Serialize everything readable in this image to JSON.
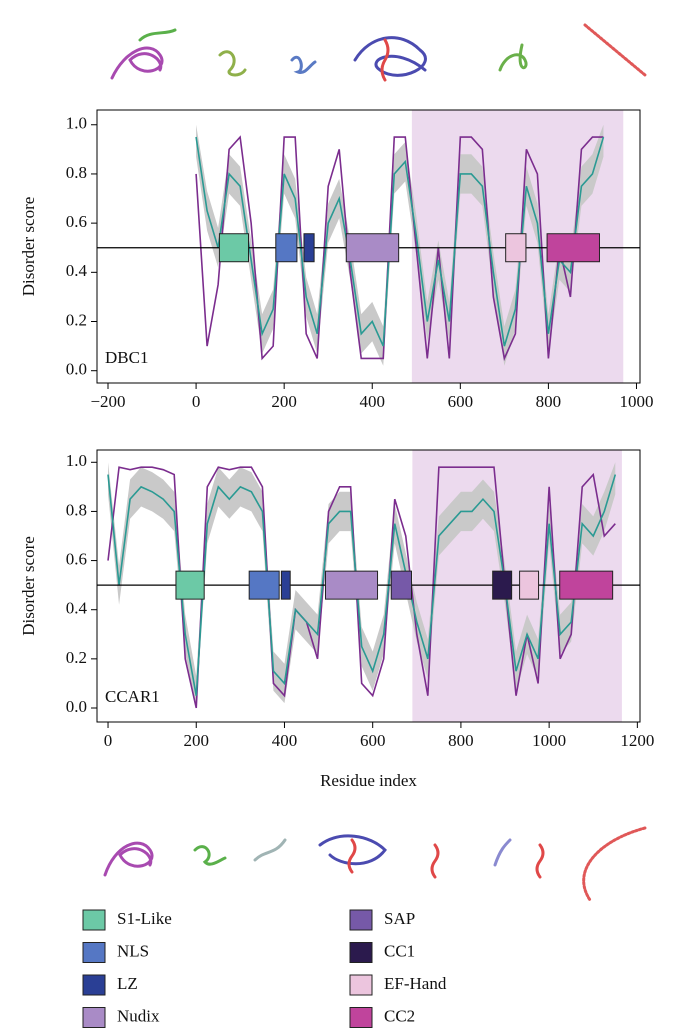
{
  "chart_data": [
    {
      "type": "line",
      "label": "DBC1",
      "y_label": "Disorder score",
      "xlim": [
        -225,
        1008
      ],
      "ylim": [
        -0.05,
        1.06
      ],
      "xticks": [
        {
          "value": -200,
          "label": "−200"
        },
        0,
        200,
        400,
        600,
        800,
        1000
      ],
      "yticks": [
        {
          "value": 0,
          "label": "0.0"
        },
        {
          "value": 0.2,
          "label": "0.2"
        },
        {
          "value": 0.4,
          "label": "0.4"
        },
        {
          "value": 0.6,
          "label": "0.6"
        },
        {
          "value": 0.8,
          "label": "0.8"
        },
        {
          "value": 1,
          "label": "1.0"
        }
      ],
      "threshold": 0.5,
      "region": [
        490,
        970
      ],
      "region_color": "#ecdaee",
      "x": [
        0,
        25,
        50,
        75,
        100,
        125,
        150,
        175,
        200,
        225,
        250,
        275,
        300,
        325,
        350,
        375,
        400,
        425,
        450,
        475,
        500,
        525,
        550,
        575,
        600,
        625,
        650,
        675,
        700,
        725,
        750,
        775,
        800,
        825,
        850,
        875,
        900,
        925
      ],
      "band": {
        "color": "#c9c9c9",
        "upper": [
          1.0,
          0.73,
          0.58,
          0.88,
          0.83,
          0.53,
          0.23,
          0.33,
          0.88,
          0.78,
          0.38,
          0.23,
          0.68,
          0.78,
          0.53,
          0.23,
          0.28,
          0.18,
          0.88,
          0.93,
          0.63,
          0.28,
          0.53,
          0.28,
          0.88,
          0.88,
          0.83,
          0.48,
          0.18,
          0.33,
          0.83,
          0.68,
          0.23,
          0.53,
          0.48,
          0.83,
          0.88,
          1.0
        ],
        "lower": [
          0.87,
          0.57,
          0.42,
          0.72,
          0.67,
          0.37,
          0.07,
          0.17,
          0.72,
          0.62,
          0.22,
          0.07,
          0.52,
          0.62,
          0.37,
          0.07,
          0.12,
          0.02,
          0.72,
          0.77,
          0.47,
          0.12,
          0.37,
          0.12,
          0.72,
          0.72,
          0.67,
          0.32,
          0.02,
          0.17,
          0.67,
          0.52,
          0.07,
          0.37,
          0.32,
          0.67,
          0.72,
          0.87
        ]
      },
      "series": [
        {
          "color": "#7b2d8e",
          "values": [
            0.8,
            0.1,
            0.35,
            0.9,
            0.95,
            0.6,
            0.05,
            0.1,
            0.95,
            0.95,
            0.15,
            0.05,
            0.75,
            0.9,
            0.4,
            0.05,
            0.05,
            0.05,
            0.95,
            0.95,
            0.5,
            0.05,
            0.5,
            0.05,
            0.95,
            0.95,
            0.9,
            0.3,
            0.05,
            0.15,
            0.9,
            0.8,
            0.05,
            0.5,
            0.3,
            0.9,
            0.95,
            0.95
          ]
        },
        {
          "color": "#2a9a93",
          "values": [
            0.95,
            0.65,
            0.5,
            0.8,
            0.75,
            0.45,
            0.15,
            0.25,
            0.8,
            0.7,
            0.3,
            0.15,
            0.6,
            0.7,
            0.45,
            0.15,
            0.2,
            0.1,
            0.8,
            0.85,
            0.55,
            0.2,
            0.45,
            0.2,
            0.8,
            0.8,
            0.75,
            0.4,
            0.1,
            0.25,
            0.75,
            0.6,
            0.15,
            0.45,
            0.4,
            0.75,
            0.8,
            0.95
          ]
        }
      ],
      "domains": [
        {
          "name": "S1-Like",
          "start": 53,
          "end": 119
        },
        {
          "name": "NLS",
          "start": 181,
          "end": 229
        },
        {
          "name": "LZ",
          "start": 245,
          "end": 268
        },
        {
          "name": "Nudix",
          "start": 341,
          "end": 460
        },
        {
          "name": "EF-Hand",
          "start": 703,
          "end": 749
        },
        {
          "name": "CC2",
          "start": 797,
          "end": 916
        }
      ]
    },
    {
      "type": "line",
      "label": "CCAR1",
      "y_label": "Disorder score",
      "x_label": "Residue index",
      "xlim": [
        -25,
        1206
      ],
      "ylim": [
        -0.057,
        1.05
      ],
      "xticks": [
        0,
        200,
        400,
        600,
        800,
        1000,
        1200
      ],
      "yticks": [
        {
          "value": 0,
          "label": "0.0"
        },
        {
          "value": 0.2,
          "label": "0.2"
        },
        {
          "value": 0.4,
          "label": "0.4"
        },
        {
          "value": 0.6,
          "label": "0.6"
        },
        {
          "value": 0.8,
          "label": "0.8"
        },
        {
          "value": 1,
          "label": "1.0"
        }
      ],
      "threshold": 0.5,
      "region": [
        690,
        1165
      ],
      "region_color": "#ecdaee",
      "x": [
        0,
        25,
        50,
        75,
        100,
        125,
        150,
        175,
        200,
        225,
        250,
        275,
        300,
        325,
        350,
        375,
        400,
        425,
        450,
        475,
        500,
        525,
        550,
        575,
        600,
        625,
        650,
        675,
        700,
        725,
        750,
        775,
        800,
        825,
        850,
        875,
        900,
        925,
        950,
        975,
        1000,
        1025,
        1050,
        1075,
        1100,
        1125,
        1150
      ],
      "band": {
        "color": "#c9c9c9",
        "upper": [
          1.0,
          0.58,
          0.93,
          0.98,
          0.96,
          0.93,
          0.88,
          0.38,
          0.13,
          0.83,
          0.98,
          0.93,
          0.98,
          0.96,
          0.88,
          0.23,
          0.18,
          0.48,
          0.43,
          0.38,
          0.83,
          0.88,
          0.88,
          0.33,
          0.23,
          0.38,
          0.83,
          0.63,
          0.43,
          0.28,
          0.78,
          0.83,
          0.88,
          0.88,
          0.93,
          0.88,
          0.58,
          0.23,
          0.38,
          0.28,
          0.83,
          0.38,
          0.43,
          0.83,
          0.78,
          0.88,
          1.0
        ],
        "lower": [
          0.87,
          0.42,
          0.77,
          0.82,
          0.8,
          0.77,
          0.72,
          0.22,
          0.0,
          0.67,
          0.82,
          0.77,
          0.82,
          0.8,
          0.72,
          0.07,
          0.02,
          0.32,
          0.27,
          0.22,
          0.67,
          0.72,
          0.72,
          0.17,
          0.07,
          0.22,
          0.67,
          0.47,
          0.27,
          0.12,
          0.62,
          0.67,
          0.72,
          0.72,
          0.77,
          0.72,
          0.42,
          0.07,
          0.22,
          0.12,
          0.67,
          0.22,
          0.27,
          0.67,
          0.62,
          0.72,
          0.87
        ]
      },
      "series": [
        {
          "color": "#7b2d8e",
          "values": [
            0.6,
            0.98,
            0.97,
            0.98,
            0.98,
            0.97,
            0.95,
            0.2,
            0.0,
            0.9,
            0.98,
            0.97,
            0.98,
            0.98,
            0.9,
            0.1,
            0.05,
            0.4,
            0.35,
            0.2,
            0.8,
            0.9,
            0.9,
            0.1,
            0.05,
            0.2,
            0.85,
            0.7,
            0.3,
            0.05,
            0.98,
            0.98,
            0.98,
            0.98,
            0.98,
            0.98,
            0.5,
            0.05,
            0.3,
            0.1,
            0.9,
            0.2,
            0.3,
            0.9,
            0.95,
            0.7,
            0.75
          ]
        },
        {
          "color": "#2a9a93",
          "values": [
            0.95,
            0.5,
            0.85,
            0.9,
            0.88,
            0.85,
            0.8,
            0.3,
            0.05,
            0.75,
            0.9,
            0.85,
            0.9,
            0.88,
            0.8,
            0.15,
            0.1,
            0.4,
            0.35,
            0.3,
            0.75,
            0.8,
            0.8,
            0.25,
            0.15,
            0.3,
            0.75,
            0.55,
            0.35,
            0.2,
            0.7,
            0.75,
            0.8,
            0.8,
            0.85,
            0.8,
            0.5,
            0.15,
            0.3,
            0.2,
            0.75,
            0.3,
            0.35,
            0.75,
            0.7,
            0.8,
            0.95
          ]
        }
      ],
      "domains": [
        {
          "name": "S1-Like",
          "start": 154,
          "end": 218
        },
        {
          "name": "NLS",
          "start": 320,
          "end": 388
        },
        {
          "name": "LZ",
          "start": 393,
          "end": 413
        },
        {
          "name": "Nudix",
          "start": 493,
          "end": 611
        },
        {
          "name": "SAP",
          "start": 642,
          "end": 688
        },
        {
          "name": "CC1",
          "start": 872,
          "end": 915
        },
        {
          "name": "EF-Hand",
          "start": 933,
          "end": 976
        },
        {
          "name": "CC2",
          "start": 1024,
          "end": 1144
        }
      ]
    }
  ],
  "legend": {
    "items": [
      {
        "name": "S1-Like",
        "color": "#6cc9a6"
      },
      {
        "name": "NLS",
        "color": "#5577c4"
      },
      {
        "name": "LZ",
        "color": "#2a3f95"
      },
      {
        "name": "Nudix",
        "color": "#a98bc6"
      },
      {
        "name": "SAP",
        "color": "#7659a8"
      },
      {
        "name": "CC1",
        "color": "#2b1a4d"
      },
      {
        "name": "EF-Hand",
        "color": "#ecc5de"
      },
      {
        "name": "CC2",
        "color": "#c0449c"
      }
    ]
  }
}
